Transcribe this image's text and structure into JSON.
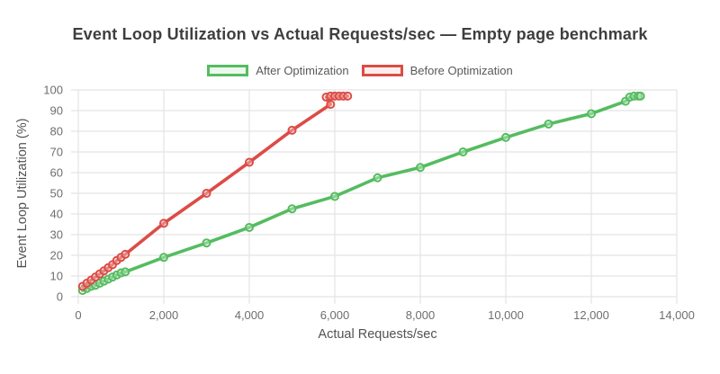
{
  "chart_data": {
    "type": "line",
    "title": "Event Loop Utilization vs Actual Requests/sec — Empty page benchmark",
    "xlabel": "Actual Requests/sec",
    "ylabel": "Event Loop Utilization (%)",
    "xlim": [
      0,
      14000
    ],
    "ylim": [
      0,
      100
    ],
    "grid": true,
    "legend_position": "top",
    "x_tick_values": [
      0,
      2000,
      4000,
      6000,
      8000,
      10000,
      12000,
      14000
    ],
    "x_tick_labels": [
      "0",
      "2,000",
      "4,000",
      "6,000",
      "8,000",
      "10,000",
      "12,000",
      "14,000"
    ],
    "y_tick_values": [
      0,
      10,
      20,
      30,
      40,
      50,
      60,
      70,
      80,
      90,
      100
    ],
    "y_tick_labels": [
      "0",
      "10",
      "20",
      "30",
      "40",
      "50",
      "60",
      "70",
      "80",
      "90",
      "100"
    ],
    "style": {
      "grid_color": "#E4E4E4",
      "tick_text_color": "#6E6E6E",
      "title_color": "#3E3E3E",
      "axis_title_color": "#525252",
      "background": "#FFFFFF"
    },
    "series": [
      {
        "name": "After Optimization",
        "color": "#55BC60",
        "fill": "#EDF8EE",
        "points": [
          [
            100,
            3
          ],
          [
            200,
            4
          ],
          [
            300,
            5
          ],
          [
            400,
            5.5
          ],
          [
            500,
            6.5
          ],
          [
            600,
            7.5
          ],
          [
            700,
            8.5
          ],
          [
            800,
            9.5
          ],
          [
            900,
            10.5
          ],
          [
            1000,
            11.5
          ],
          [
            1100,
            12
          ],
          [
            2000,
            19
          ],
          [
            3000,
            26
          ],
          [
            4000,
            33.5
          ],
          [
            5000,
            42.5
          ],
          [
            6000,
            48.5
          ],
          [
            7000,
            57.5
          ],
          [
            8000,
            62.5
          ],
          [
            9000,
            70
          ],
          [
            10000,
            77
          ],
          [
            11000,
            83.5
          ],
          [
            12000,
            88.5
          ],
          [
            12800,
            94.5
          ],
          [
            12900,
            96.5
          ],
          [
            13000,
            97
          ],
          [
            13100,
            97
          ],
          [
            13150,
            97
          ]
        ]
      },
      {
        "name": "Before Optimization",
        "color": "#DC4C46",
        "fill": "#FBEEEC",
        "points": [
          [
            100,
            5
          ],
          [
            200,
            6.5
          ],
          [
            300,
            8
          ],
          [
            400,
            9.5
          ],
          [
            500,
            11
          ],
          [
            600,
            12.5
          ],
          [
            700,
            14
          ],
          [
            800,
            15.5
          ],
          [
            900,
            17.5
          ],
          [
            1000,
            19
          ],
          [
            1100,
            20.5
          ],
          [
            2000,
            35.5
          ],
          [
            3000,
            50
          ],
          [
            4000,
            65
          ],
          [
            5000,
            80.5
          ],
          [
            5900,
            93
          ],
          [
            5800,
            96.5
          ],
          [
            5900,
            97
          ],
          [
            6000,
            97
          ],
          [
            6100,
            97
          ],
          [
            6200,
            97
          ],
          [
            6300,
            97
          ]
        ]
      }
    ]
  }
}
